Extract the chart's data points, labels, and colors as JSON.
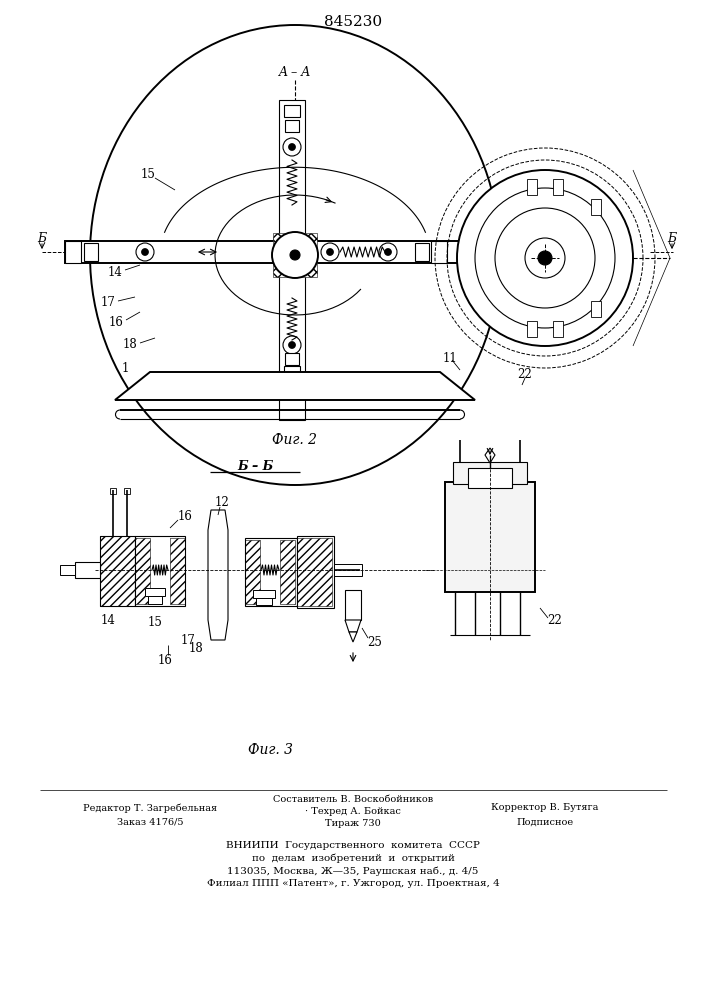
{
  "patent_number": "845230",
  "fig2_label": "Фиг. 2",
  "fig3_label": "Фиг. 3",
  "section_aa": "A – A",
  "section_bb": "Б – Б",
  "section_b": "Б",
  "footer_col1_line1": "Редактор Т. Загребельная",
  "footer_col1_line2": "Заказ 4176/5",
  "footer_col2_line1": "Составитель В. Воскобойников",
  "footer_col2_line2": "· Техред А. Бойкас",
  "footer_col2_line3": "Тираж 730",
  "footer_col3_line1": "Корректор В. Бутяга",
  "footer_col3_line2": "Подписное",
  "footer_vniipи": "ВНИИПИ  Государственного  комитета  СССР",
  "footer_line2": "по  делам  изобретений  и  открытий",
  "footer_line3": "113035, Москва, Ж—35, Раушская наб., д. 4/5",
  "footer_line4": "Филиал ППП «Патент», г. Ужгород, ул. Проектная, 4",
  "bg_color": "#ffffff",
  "line_color": "#000000"
}
